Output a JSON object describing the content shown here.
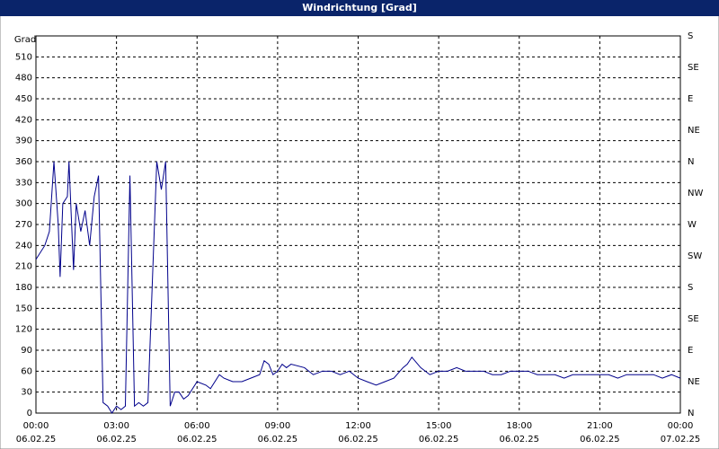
{
  "chart_data": {
    "type": "line",
    "title": "Windrichtung [Grad]",
    "ylabel": "Grad",
    "xlim": [
      0,
      24
    ],
    "ylim": [
      0,
      540
    ],
    "y2lim": [
      0,
      540
    ],
    "grid": true,
    "xticks": [
      {
        "value": 0,
        "label": [
          "00:00",
          "06.02.25"
        ]
      },
      {
        "value": 3,
        "label": [
          "03:00",
          "06.02.25"
        ]
      },
      {
        "value": 6,
        "label": [
          "06:00",
          "06.02.25"
        ]
      },
      {
        "value": 9,
        "label": [
          "09:00",
          "06.02.25"
        ]
      },
      {
        "value": 12,
        "label": [
          "12:00",
          "06.02.25"
        ]
      },
      {
        "value": 15,
        "label": [
          "15:00",
          "06.02.25"
        ]
      },
      {
        "value": 18,
        "label": [
          "18:00",
          "06.02.25"
        ]
      },
      {
        "value": 21,
        "label": [
          "21:00",
          "06.02.25"
        ]
      },
      {
        "value": 24,
        "label": [
          "00:00",
          "07.02.25"
        ]
      }
    ],
    "yticks": [
      0,
      30,
      60,
      90,
      120,
      150,
      180,
      210,
      240,
      270,
      300,
      330,
      360,
      390,
      420,
      450,
      480,
      510
    ],
    "y2ticks": [
      {
        "value": 0,
        "label": "N"
      },
      {
        "value": 45,
        "label": "NE"
      },
      {
        "value": 90,
        "label": "E"
      },
      {
        "value": 135,
        "label": "SE"
      },
      {
        "value": 180,
        "label": "S"
      },
      {
        "value": 225,
        "label": "SW"
      },
      {
        "value": 270,
        "label": "W"
      },
      {
        "value": 315,
        "label": "NW"
      },
      {
        "value": 360,
        "label": "N"
      },
      {
        "value": 405,
        "label": "NE"
      },
      {
        "value": 450,
        "label": "E"
      },
      {
        "value": 495,
        "label": "SE"
      },
      {
        "value": 540,
        "label": "S"
      }
    ],
    "series": [
      {
        "color": "#00008b",
        "x": [
          0,
          0.33,
          0.5,
          0.67,
          0.83,
          0.9,
          1.0,
          1.17,
          1.23,
          1.4,
          1.5,
          1.67,
          1.83,
          2.0,
          2.17,
          2.33,
          2.5,
          2.67,
          2.83,
          3.0,
          3.17,
          3.33,
          3.5,
          3.67,
          3.83,
          4.0,
          4.17,
          4.5,
          4.67,
          4.83,
          5.0,
          5.17,
          5.33,
          5.5,
          5.67,
          6.0,
          6.33,
          6.5,
          6.83,
          7.0,
          7.33,
          7.67,
          8.0,
          8.33,
          8.5,
          8.67,
          8.83,
          9.0,
          9.17,
          9.33,
          9.5,
          10.0,
          10.33,
          10.67,
          11.0,
          11.33,
          11.67,
          12.0,
          12.33,
          12.67,
          13.0,
          13.33,
          13.67,
          13.83,
          14.0,
          14.33,
          14.67,
          15.0,
          15.33,
          15.67,
          16.0,
          16.33,
          16.67,
          17.0,
          17.33,
          17.67,
          18.0,
          18.33,
          18.67,
          19.0,
          19.33,
          19.67,
          20.0,
          20.33,
          20.67,
          21.0,
          21.33,
          21.67,
          22.0,
          22.33,
          22.67,
          23.0,
          23.33,
          23.67,
          24.0
        ],
        "values": [
          220,
          240,
          260,
          360,
          270,
          195,
          300,
          310,
          360,
          205,
          300,
          260,
          290,
          240,
          310,
          340,
          15,
          10,
          0,
          10,
          5,
          10,
          340,
          10,
          15,
          10,
          15,
          360,
          320,
          360,
          10,
          30,
          30,
          20,
          25,
          45,
          40,
          35,
          55,
          50,
          45,
          45,
          50,
          55,
          75,
          70,
          55,
          60,
          70,
          65,
          70,
          65,
          55,
          60,
          60,
          55,
          60,
          50,
          45,
          40,
          45,
          50,
          65,
          70,
          80,
          65,
          55,
          60,
          60,
          65,
          60,
          60,
          60,
          55,
          55,
          60,
          60,
          60,
          55,
          55,
          55,
          50,
          55,
          55,
          55,
          55,
          55,
          50,
          55,
          55,
          55,
          55,
          50,
          55,
          50
        ]
      }
    ]
  }
}
